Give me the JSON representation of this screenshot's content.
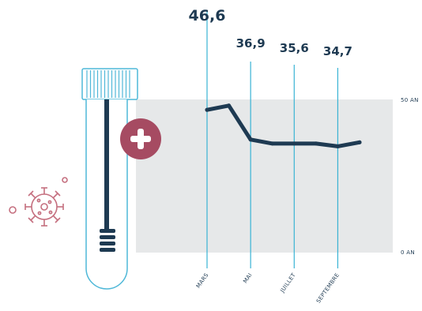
{
  "chart_data": {
    "type": "line",
    "y_axis_labels": [
      "50 AN",
      "0 AN"
    ],
    "ylim": [
      0,
      50
    ],
    "x_points": 8,
    "values": [
      46.6,
      48.0,
      36.9,
      35.6,
      35.6,
      35.6,
      34.7,
      36.0
    ],
    "months": [
      {
        "label": "MARS",
        "index": 0,
        "value_label": "46,6"
      },
      {
        "label": "MAI",
        "index": 2,
        "value_label": "36,9"
      },
      {
        "label": "JUILLET",
        "index": 4,
        "value_label": "35,6"
      },
      {
        "label": "SEPTEMBRE",
        "index": 6,
        "value_label": "34,7"
      }
    ],
    "grid": false,
    "legend": "none"
  },
  "colors": {
    "band": "#e6e8e9",
    "line": "#1e3a52",
    "month_lines": "#39b3d4",
    "icon_outline": "#4fb8d8",
    "plus_badge": "#a64b62",
    "virus": "#c56f7f"
  },
  "icons": {
    "test_tube": "test-tube-icon",
    "plus": "plus-icon",
    "virus": "virus-icon"
  }
}
